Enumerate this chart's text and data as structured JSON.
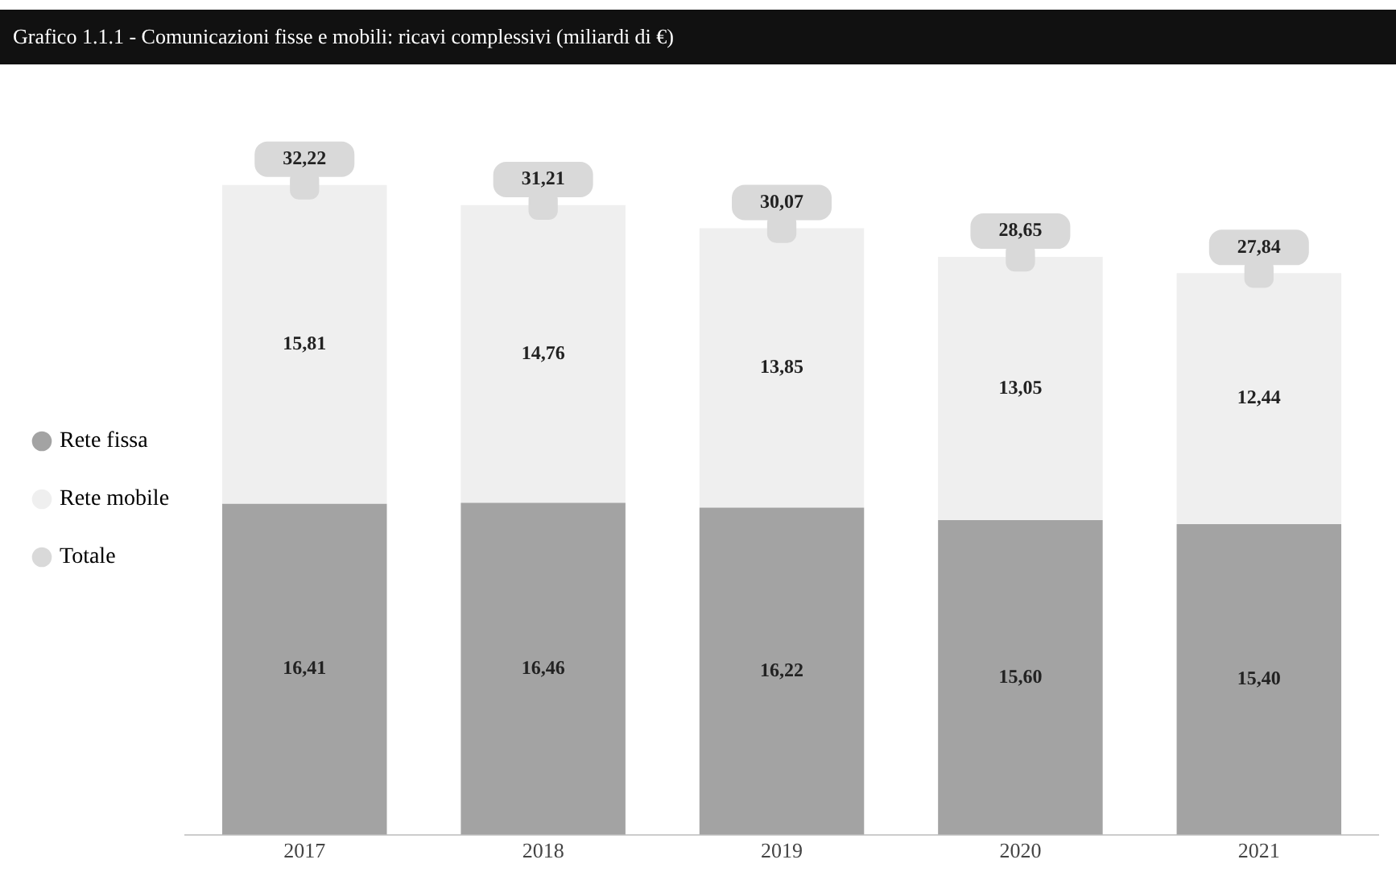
{
  "chart_data": {
    "type": "bar",
    "stacked": true,
    "title": "Grafico 1.1.1 - Comunicazioni fisse e mobili: ricavi complessivi (miliardi di €)",
    "categories": [
      "2017",
      "2018",
      "2019",
      "2020",
      "2021"
    ],
    "series": [
      {
        "name": "Rete fissa",
        "color": "#a3a3a3",
        "values": [
          16.41,
          16.46,
          16.22,
          15.6,
          15.4
        ],
        "value_labels": [
          "16,41",
          "16,46",
          "16,22",
          "15,60",
          "15,40"
        ]
      },
      {
        "name": "Rete mobile",
        "color": "#efefef",
        "values": [
          15.81,
          14.76,
          13.85,
          13.05,
          12.44
        ],
        "value_labels": [
          "15,81",
          "14,76",
          "13,85",
          "13,05",
          "12,44"
        ]
      },
      {
        "name": "Totale",
        "type": "scatter",
        "color": "#d9d9d9",
        "values": [
          32.22,
          31.21,
          30.07,
          28.65,
          27.84
        ],
        "value_labels": [
          "32,22",
          "31,21",
          "30,07",
          "28,65",
          "27,84"
        ]
      }
    ],
    "legend": "left",
    "grid": false
  }
}
